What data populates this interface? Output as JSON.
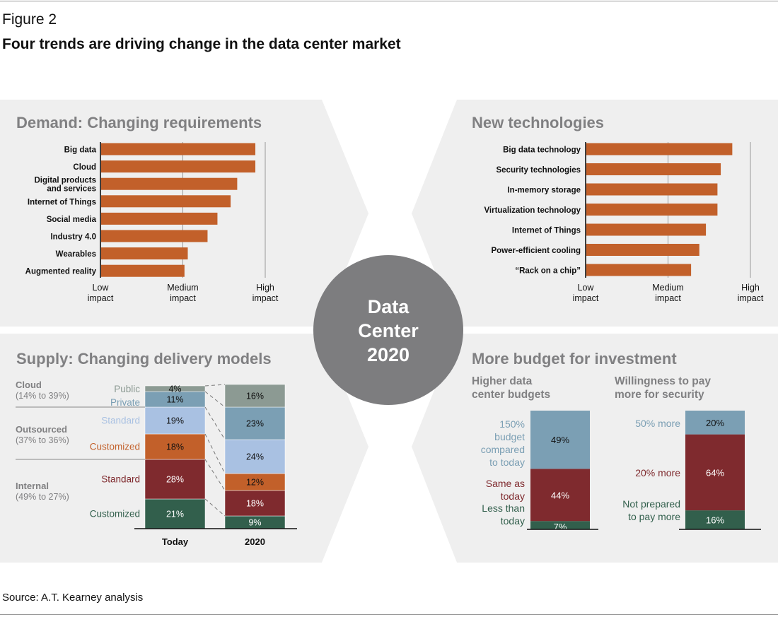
{
  "figure": {
    "label": "Figure 2",
    "title": "Four trends are driving change in the data center market",
    "source": "Source: A.T. Kearney analysis",
    "center_lines": [
      "Data",
      "Center",
      "2020"
    ]
  },
  "colors": {
    "panel": "#efefef",
    "bar": "#c2602a",
    "circle": "#7d7d7f",
    "heading": "#808082",
    "gray_seg": "#8c9a93",
    "teal": "#7b9fb4",
    "lightblue": "#a9c1e2",
    "orange": "#c2602a",
    "darkred": "#7f2a2e",
    "green": "#325f4c"
  },
  "chart_data": [
    {
      "id": "demand",
      "type": "bar",
      "orientation": "horizontal",
      "title": "Demand: Changing requirements",
      "categories": [
        "Big data",
        "Cloud",
        "Digital products and services",
        "Internet of Things",
        "Social media",
        "Industry 4.0",
        "Wearables",
        "Augmented reality"
      ],
      "category_lines": [
        [
          "Big data"
        ],
        [
          "Cloud"
        ],
        [
          "Digital products",
          "and services"
        ],
        [
          "Internet of Things"
        ],
        [
          "Social media"
        ],
        [
          "Industry 4.0"
        ],
        [
          "Wearables"
        ],
        [
          "Augmented reality"
        ]
      ],
      "values": [
        0.94,
        0.94,
        0.83,
        0.79,
        0.71,
        0.65,
        0.53,
        0.51
      ],
      "xlim": [
        0,
        1
      ],
      "axis_ticks": [
        0,
        0.5,
        1
      ],
      "axis_labels": [
        [
          "Low",
          "impact"
        ],
        [
          "Medium",
          "impact"
        ],
        [
          "High",
          "impact"
        ]
      ]
    },
    {
      "id": "tech",
      "type": "bar",
      "orientation": "horizontal",
      "title": "New technologies",
      "categories": [
        "Big data technology",
        "Security technologies",
        "In-memory storage",
        "Virtualization technology",
        "Internet of Things",
        "Power-efficient cooling",
        "“Rack on a chip”"
      ],
      "category_lines": [
        [
          "Big data technology"
        ],
        [
          "Security technologies"
        ],
        [
          "In-memory storage"
        ],
        [
          "Virtualization technology"
        ],
        [
          "Internet of Things"
        ],
        [
          "Power-efficient cooling"
        ],
        [
          "“Rack on a chip”"
        ]
      ],
      "values": [
        0.89,
        0.82,
        0.8,
        0.8,
        0.73,
        0.69,
        0.64
      ],
      "xlim": [
        0,
        1
      ],
      "axis_ticks": [
        0,
        0.5,
        1
      ],
      "axis_labels": [
        [
          "Low",
          "impact"
        ],
        [
          "Medium",
          "impact"
        ],
        [
          "High",
          "impact"
        ]
      ]
    },
    {
      "id": "supply",
      "type": "bar",
      "stacked": true,
      "title": "Supply: Changing delivery models",
      "categories": [
        "Today",
        "2020"
      ],
      "ylim": [
        0,
        100
      ],
      "series": [
        {
          "name": "Internal Customized",
          "color": "#325f4c",
          "values": [
            21,
            9
          ],
          "labels": [
            "21%",
            "9%"
          ]
        },
        {
          "name": "Internal Standard",
          "color": "#7f2a2e",
          "values": [
            28,
            18
          ],
          "labels": [
            "28%",
            "18%"
          ]
        },
        {
          "name": "Outsourced Customized",
          "color": "#c2602a",
          "values": [
            18,
            12
          ],
          "labels": [
            "18%",
            "12%"
          ]
        },
        {
          "name": "Outsourced Standard",
          "color": "#a9c1e2",
          "values": [
            19,
            24
          ],
          "labels": [
            "19%",
            "24%"
          ]
        },
        {
          "name": "Cloud Private",
          "color": "#7b9fb4",
          "values": [
            11,
            23
          ],
          "labels": [
            "11%",
            "23%"
          ]
        },
        {
          "name": "Cloud Public",
          "color": "#8c9a93",
          "values": [
            4,
            16
          ],
          "labels": [
            "4%",
            "16%"
          ]
        }
      ],
      "groups": [
        {
          "name": "Cloud",
          "range": "(14% to 39%)",
          "parts": [
            "Public",
            "Private"
          ]
        },
        {
          "name": "Outsourced",
          "range": "(37% to 36%)",
          "parts": [
            "Standard",
            "Customized"
          ]
        },
        {
          "name": "Internal",
          "range": "(49% to 27%)",
          "parts": [
            "Standard",
            "Customized"
          ]
        }
      ]
    },
    {
      "id": "budget",
      "type": "bar",
      "stacked": true,
      "title": "More budget for investment",
      "subcharts": [
        {
          "title": [
            "Higher data",
            "center budgets"
          ],
          "segments": [
            {
              "value": 7,
              "label": "7%",
              "color": "#325f4c",
              "desc": [
                "Less than",
                "today"
              ]
            },
            {
              "value": 44,
              "label": "44%",
              "color": "#7f2a2e",
              "desc": [
                "Same as",
                "today"
              ]
            },
            {
              "value": 49,
              "label": "49%",
              "color": "#7b9fb4",
              "desc": [
                "150%",
                "budget",
                "compared",
                "to today"
              ]
            }
          ]
        },
        {
          "title": [
            "Willingness to pay",
            "more for security"
          ],
          "segments": [
            {
              "value": 16,
              "label": "16%",
              "color": "#325f4c",
              "desc": [
                "Not prepared",
                "to pay more"
              ]
            },
            {
              "value": 64,
              "label": "64%",
              "color": "#7f2a2e",
              "desc": [
                "20% more"
              ]
            },
            {
              "value": 20,
              "label": "20%",
              "color": "#7b9fb4",
              "desc": [
                "50% more"
              ]
            }
          ]
        }
      ]
    }
  ]
}
